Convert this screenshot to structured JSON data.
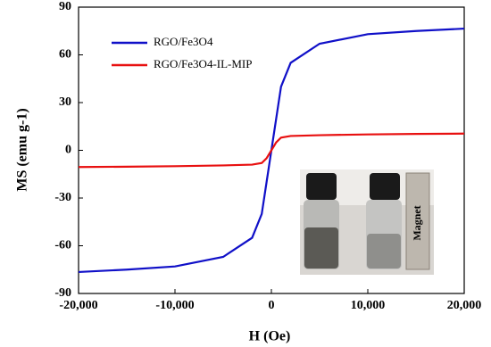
{
  "chart_data": {
    "type": "line",
    "x_label": "H (Oe)",
    "y_label": "MS (emu g-1)",
    "x": [
      -20000,
      -15000,
      -10000,
      -5000,
      -2000,
      -1000,
      -500,
      0,
      500,
      1000,
      2000,
      5000,
      10000,
      15000,
      20000
    ],
    "series": [
      {
        "name": "RGO/Fe3O4",
        "color": "#1010c8",
        "values": [
          -76.5,
          -75,
          -73,
          -67,
          -55,
          -40,
          -20,
          0,
          20,
          40,
          55,
          67,
          73,
          75,
          76.5
        ]
      },
      {
        "name": "RGO/Fe3O4-IL-MIP",
        "color": "#e81010",
        "values": [
          -10.5,
          -10.3,
          -10,
          -9.5,
          -9,
          -8,
          -5,
          0,
          5,
          8,
          9,
          9.5,
          10,
          10.3,
          10.5
        ]
      }
    ],
    "xlim": [
      -20000,
      20000
    ],
    "xticks": [
      {
        "value": -20000,
        "label": "-20,000"
      },
      {
        "value": -10000,
        "label": "-10,000"
      },
      0,
      {
        "value": 10000,
        "label": "10,000"
      },
      {
        "value": 20000,
        "label": "20,000"
      }
    ],
    "ylim": [
      -90,
      90
    ],
    "yticks": [
      -90,
      -60,
      -30,
      0,
      30,
      60,
      90
    ],
    "legend": "upper left",
    "annotations": [
      "Magnet"
    ]
  }
}
